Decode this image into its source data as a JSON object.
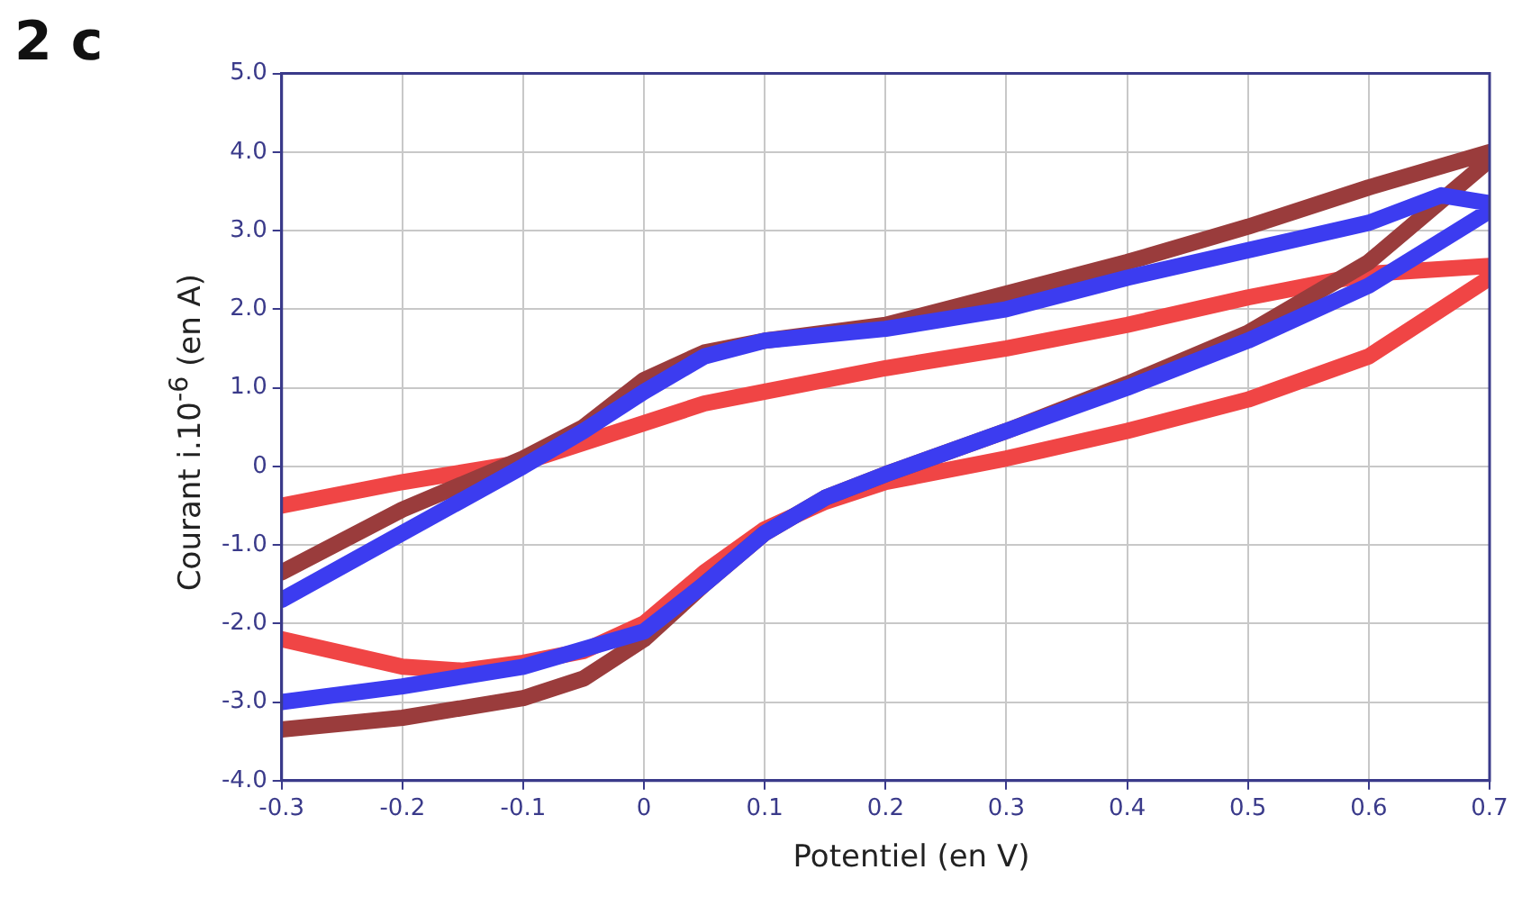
{
  "chart_data": {
    "type": "line",
    "title": "2 c",
    "xlabel": "Potentiel (en V)",
    "ylabel": "Courant i.10$^{-6}$ (en A)",
    "xlim": [
      -0.3,
      0.7
    ],
    "xticks": [
      -0.3,
      -0.2,
      -0.1,
      0,
      0.1,
      0.2,
      0.3,
      0.4,
      0.5,
      0.6,
      0.7
    ],
    "ylim": [
      -4,
      5
    ],
    "yticks": [
      {
        "value": -4,
        "label": "-4.0"
      },
      {
        "value": -3,
        "label": "-3.0"
      },
      {
        "value": -2,
        "label": "-2.0"
      },
      {
        "value": -1,
        "label": "-1.0"
      },
      0,
      {
        "value": 1,
        "label": "1.0"
      },
      {
        "value": 2,
        "label": "2.0"
      },
      {
        "value": 3,
        "label": "3.0"
      },
      {
        "value": 4,
        "label": "4.0"
      },
      {
        "value": 5,
        "label": "5.0"
      }
    ],
    "grid": true,
    "legend": false,
    "marker": "none",
    "line_style": "solid",
    "series": [
      {
        "color": "#f04545",
        "x": [
          -0.3,
          -0.2,
          -0.15,
          -0.1,
          -0.05,
          0,
          0.05,
          0.1,
          0.15,
          0.2,
          0.3,
          0.4,
          0.5,
          0.6,
          0.7,
          0.7,
          0.6,
          0.5,
          0.4,
          0.3,
          0.2,
          0.1,
          0.05,
          0,
          -0.05,
          -0.1,
          -0.2,
          -0.3
        ],
        "values": [
          -2.2,
          -2.55,
          -2.6,
          -2.5,
          -2.35,
          -2.0,
          -1.35,
          -0.8,
          -0.45,
          -0.2,
          0.1,
          0.45,
          0.85,
          1.4,
          2.4,
          2.55,
          2.45,
          2.15,
          1.8,
          1.5,
          1.25,
          0.95,
          0.8,
          0.55,
          0.3,
          0.05,
          -0.2,
          -0.5
        ]
      },
      {
        "color": "#9a3c3c",
        "x": [
          -0.3,
          -0.2,
          -0.1,
          -0.05,
          0,
          0.05,
          0.1,
          0.15,
          0.2,
          0.3,
          0.4,
          0.5,
          0.6,
          0.7,
          0.7,
          0.6,
          0.5,
          0.4,
          0.3,
          0.2,
          0.1,
          0.05,
          0,
          -0.05,
          -0.1,
          -0.2,
          -0.3
        ],
        "values": [
          -3.35,
          -3.2,
          -2.95,
          -2.7,
          -2.2,
          -1.5,
          -0.85,
          -0.4,
          -0.1,
          0.45,
          1.05,
          1.7,
          2.6,
          3.9,
          4.0,
          3.55,
          3.05,
          2.6,
          2.2,
          1.8,
          1.6,
          1.45,
          1.1,
          0.5,
          0.1,
          -0.55,
          -1.35
        ]
      },
      {
        "color": "#3c3cf0",
        "x": [
          -0.3,
          -0.2,
          -0.1,
          0,
          0.05,
          0.1,
          0.15,
          0.2,
          0.3,
          0.4,
          0.5,
          0.6,
          0.7,
          0.7,
          0.66,
          0.6,
          0.5,
          0.4,
          0.3,
          0.2,
          0.1,
          0.05,
          0,
          -0.05,
          -0.1,
          -0.2,
          -0.3
        ],
        "values": [
          -3.0,
          -2.8,
          -2.55,
          -2.1,
          -1.5,
          -0.85,
          -0.4,
          -0.1,
          0.45,
          1.0,
          1.6,
          2.3,
          3.25,
          3.35,
          3.45,
          3.1,
          2.75,
          2.4,
          2.0,
          1.75,
          1.6,
          1.4,
          0.95,
          0.45,
          0.0,
          -0.85,
          -1.7
        ]
      }
    ]
  }
}
